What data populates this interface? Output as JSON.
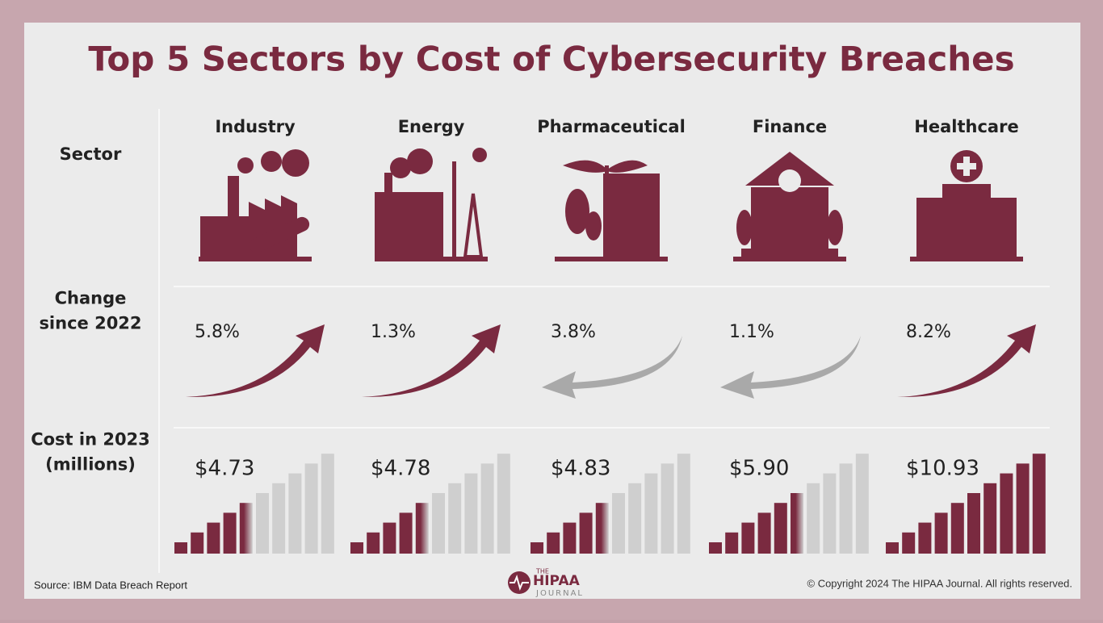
{
  "title": "Top 5 Sectors by Cost of Cybersecurity Breaches",
  "row_labels": {
    "sector": [
      "Sector"
    ],
    "change": [
      "Change",
      "since 2022"
    ],
    "cost": [
      "Cost in 2023",
      "(millions)"
    ]
  },
  "sectors": [
    {
      "name": "Industry",
      "change": {
        "value": 5.8,
        "label": "5.8%"
      },
      "cost": {
        "value": 4.73,
        "label": "$4.73"
      }
    },
    {
      "name": "Energy",
      "change": {
        "value": 1.3,
        "label": "1.3%"
      },
      "cost": {
        "value": 4.78,
        "label": "$4.78"
      }
    },
    {
      "name": "Pharmaceutical",
      "change": {
        "value": -3.8,
        "label": "3.8%"
      },
      "cost": {
        "value": 4.83,
        "label": "$4.83"
      }
    },
    {
      "name": "Finance",
      "change": {
        "value": -1.1,
        "label": "1.1%"
      },
      "cost": {
        "value": 5.9,
        "label": "$5.90"
      }
    },
    {
      "name": "Healthcare",
      "change": {
        "value": 8.2,
        "label": "8.2%"
      },
      "cost": {
        "value": 10.93,
        "label": "$10.93"
      }
    }
  ],
  "source": "Source: IBM Data Breach Report",
  "copyright": "© Copyright 2024 The HIPAA Journal. All rights reserved.",
  "logo": {
    "top": "THE",
    "main": "HIPAA",
    "bottom": "JOURNAL"
  }
}
